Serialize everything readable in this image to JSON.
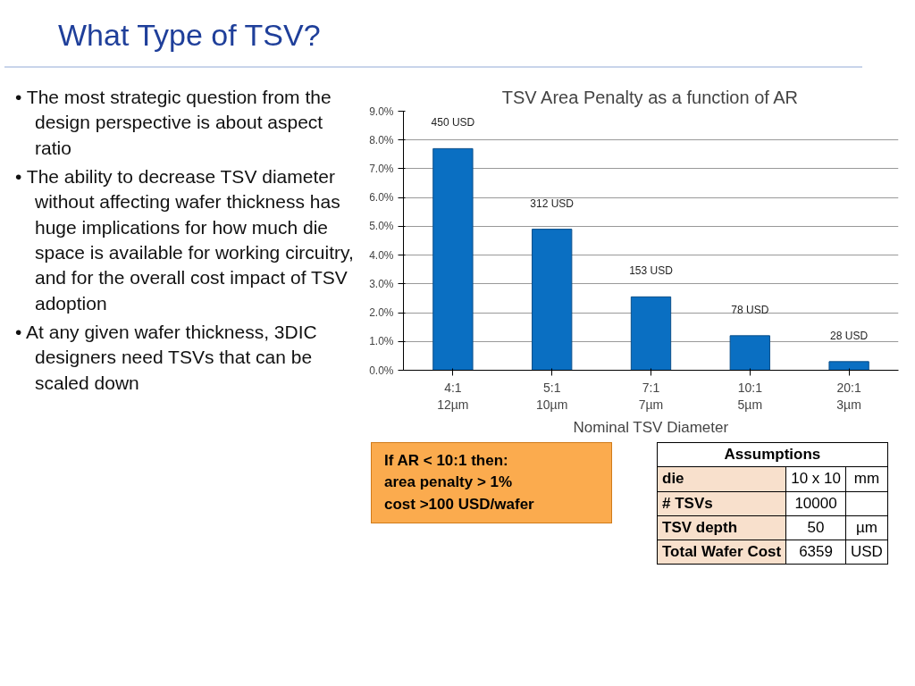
{
  "chart_data": {
    "type": "bar",
    "title": "TSV Area Penalty as a function of AR",
    "xlabel": "Nominal TSV Diameter",
    "categories": [
      "4:1\n12µm",
      "5:1\n10µm",
      "7:1\n7µm",
      "10:1\n5µm",
      "20:1\n3µm"
    ],
    "values": [
      7.7,
      4.9,
      2.55,
      1.2,
      0.3
    ],
    "color": "#0a6fc2",
    "ylim": [
      0,
      9
    ],
    "yticks": [
      {
        "value": 0,
        "label": "0.0%"
      },
      {
        "value": 1,
        "label": "1.0%"
      },
      {
        "value": 2,
        "label": "2.0%"
      },
      {
        "value": 3,
        "label": "3.0%"
      },
      {
        "value": 4,
        "label": "4.0%"
      },
      {
        "value": 5,
        "label": "5.0%"
      },
      {
        "value": 6,
        "label": "6.0%"
      },
      {
        "value": 7,
        "label": "7.0%"
      },
      {
        "value": 8,
        "label": "8.0%"
      },
      {
        "value": 9,
        "label": "9.0%"
      }
    ],
    "grid": "y",
    "annotations": [
      {
        "text": "450 USD",
        "x": "4:1\n12µm",
        "y": 7.7
      },
      {
        "text": "312 USD",
        "x": "5:1\n10µm",
        "y": 4.9
      },
      {
        "text": "153 USD",
        "x": "7:1\n7µm",
        "y": 2.55
      },
      {
        "text": "78 USD",
        "x": "10:1\n5µm",
        "y": 1.2
      },
      {
        "text": "28 USD",
        "x": "20:1\n3µm",
        "y": 0.3
      },
      "What Type of TSV?",
      "• The most strategic question from the design perspective is about aspect ratio",
      "• The ability to decrease TSV diameter without affecting wafer thickness has huge implications for how much die space is available for working circuitry, and for the overall cost impact of TSV adoption",
      "• At any given wafer thickness, 3DIC designers need TSVs that can be scaled down",
      "If AR < 10:1 then:\narea penalty > 1%\ncost >100 USD/wafer",
      "Assumptions",
      "die",
      "10 x 10",
      "mm",
      "# TSVs",
      "10000",
      "TSV depth",
      "50",
      "µm",
      "Total Wafer Cost",
      "6359",
      "USD"
    ]
  }
}
